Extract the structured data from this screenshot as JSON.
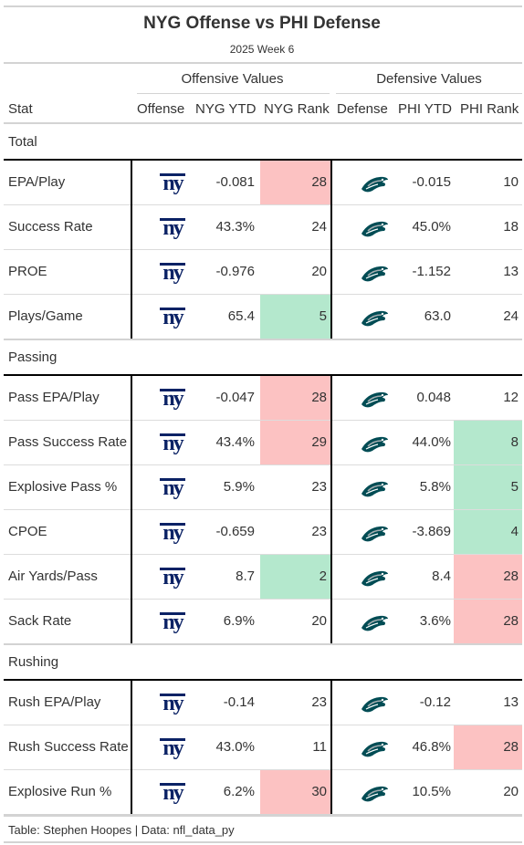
{
  "title": "NYG Offense vs PHI Defense",
  "subtitle": "2025 Week 6",
  "group_headers": {
    "offense": "Offensive Values",
    "defense": "Defensive Values"
  },
  "columns": {
    "stat": "Stat",
    "offense": "Offense",
    "nyg_ytd": "NYG YTD",
    "nyg_rank": "NYG Rank",
    "defense": "Defense",
    "phi_ytd": "PHI YTD",
    "phi_rank": "PHI Rank"
  },
  "colors": {
    "good": "#b4e8cd",
    "bad": "#fcc2c2",
    "giants_blue": "#0b2265",
    "eagles_green": "#004c54"
  },
  "icons": {
    "offense": "giants-ny-logo-icon",
    "defense": "eagles-head-logo-icon"
  },
  "sections": [
    {
      "name": "Total",
      "rows": [
        {
          "stat": "EPA/Play",
          "nyg_ytd": "-0.081",
          "nyg_rank": "28",
          "nyg_rank_color": "bad",
          "phi_ytd": "-0.015",
          "phi_rank": "10",
          "phi_rank_color": ""
        },
        {
          "stat": "Success Rate",
          "nyg_ytd": "43.3%",
          "nyg_rank": "24",
          "nyg_rank_color": "",
          "phi_ytd": "45.0%",
          "phi_rank": "18",
          "phi_rank_color": ""
        },
        {
          "stat": "PROE",
          "nyg_ytd": "-0.976",
          "nyg_rank": "20",
          "nyg_rank_color": "",
          "phi_ytd": "-1.152",
          "phi_rank": "13",
          "phi_rank_color": ""
        },
        {
          "stat": "Plays/Game",
          "nyg_ytd": "65.4",
          "nyg_rank": "5",
          "nyg_rank_color": "good",
          "phi_ytd": "63.0",
          "phi_rank": "24",
          "phi_rank_color": ""
        }
      ]
    },
    {
      "name": "Passing",
      "rows": [
        {
          "stat": "Pass EPA/Play",
          "nyg_ytd": "-0.047",
          "nyg_rank": "28",
          "nyg_rank_color": "bad",
          "phi_ytd": "0.048",
          "phi_rank": "12",
          "phi_rank_color": ""
        },
        {
          "stat": "Pass Success Rate",
          "nyg_ytd": "43.4%",
          "nyg_rank": "29",
          "nyg_rank_color": "bad",
          "phi_ytd": "44.0%",
          "phi_rank": "8",
          "phi_rank_color": "good"
        },
        {
          "stat": "Explosive Pass %",
          "nyg_ytd": "5.9%",
          "nyg_rank": "23",
          "nyg_rank_color": "",
          "phi_ytd": "5.8%",
          "phi_rank": "5",
          "phi_rank_color": "good"
        },
        {
          "stat": "CPOE",
          "nyg_ytd": "-0.659",
          "nyg_rank": "23",
          "nyg_rank_color": "",
          "phi_ytd": "-3.869",
          "phi_rank": "4",
          "phi_rank_color": "good"
        },
        {
          "stat": "Air Yards/Pass",
          "nyg_ytd": "8.7",
          "nyg_rank": "2",
          "nyg_rank_color": "good",
          "phi_ytd": "8.4",
          "phi_rank": "28",
          "phi_rank_color": "bad"
        },
        {
          "stat": "Sack Rate",
          "nyg_ytd": "6.9%",
          "nyg_rank": "20",
          "nyg_rank_color": "",
          "phi_ytd": "3.6%",
          "phi_rank": "28",
          "phi_rank_color": "bad"
        }
      ]
    },
    {
      "name": "Rushing",
      "rows": [
        {
          "stat": "Rush EPA/Play",
          "nyg_ytd": "-0.14",
          "nyg_rank": "23",
          "nyg_rank_color": "",
          "phi_ytd": "-0.12",
          "phi_rank": "13",
          "phi_rank_color": ""
        },
        {
          "stat": "Rush Success Rate",
          "nyg_ytd": "43.0%",
          "nyg_rank": "11",
          "nyg_rank_color": "",
          "phi_ytd": "46.8%",
          "phi_rank": "28",
          "phi_rank_color": "bad"
        },
        {
          "stat": "Explosive Run %",
          "nyg_ytd": "6.2%",
          "nyg_rank": "30",
          "nyg_rank_color": "bad",
          "phi_ytd": "10.5%",
          "phi_rank": "20",
          "phi_rank_color": ""
        }
      ]
    }
  ],
  "footer": "Table: Stephen Hoopes | Data: nfl_data_py"
}
